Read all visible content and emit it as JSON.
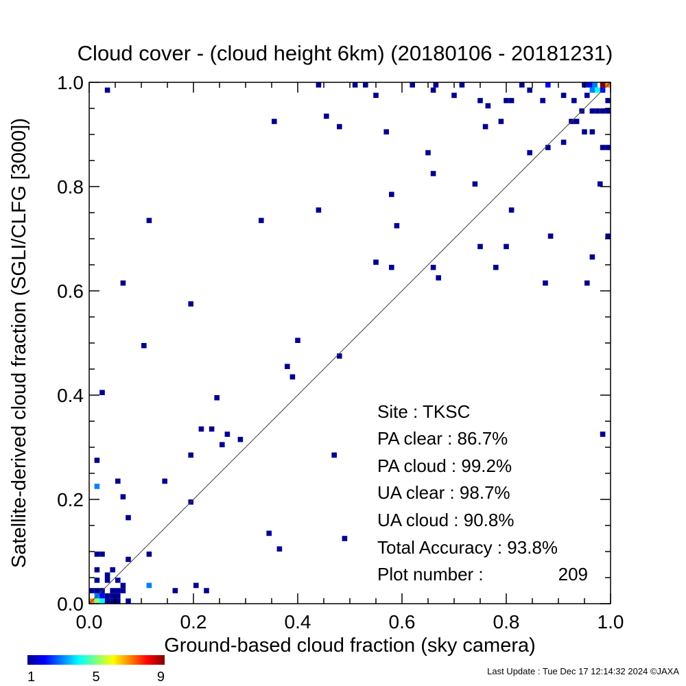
{
  "chart_data": {
    "type": "heatmap",
    "title": "Cloud cover - (cloud height 6km)  (20180106 - 20181231)",
    "xlabel": "Ground-based cloud fraction (sky camera)",
    "ylabel": "Satellite-derived cloud fraction (SGLI/CLFG [3000])",
    "xlim": [
      0.0,
      1.0
    ],
    "ylim": [
      0.0,
      1.0
    ],
    "x_ticks": [
      "0.0",
      "0.2",
      "0.4",
      "0.6",
      "0.8",
      "1.0"
    ],
    "y_ticks": [
      "0.0",
      "0.2",
      "0.4",
      "0.6",
      "0.8",
      "1.0"
    ],
    "reference_line": "y = x",
    "grid": false,
    "colorbar": {
      "min": 1,
      "max": 9,
      "ticks": [
        "1",
        "5",
        "9"
      ],
      "colormap": "rainbow"
    },
    "stats": {
      "site": "Site : TKSC",
      "pa_clear": "PA clear :  86.7%",
      "pa_cloud": "PA cloud :  99.2%",
      "ua_clear": "UA clear :  98.7%",
      "ua_cloud": "UA cloud :  90.8%",
      "total": "Total Accuracy :  93.8%",
      "plot_number_label": "Plot number :",
      "plot_number": "209"
    },
    "points": [
      [
        0.035,
        0.985,
        1
      ],
      [
        0.44,
        0.995,
        1
      ],
      [
        0.51,
        0.995,
        1
      ],
      [
        0.53,
        0.995,
        1
      ],
      [
        0.62,
        0.995,
        1
      ],
      [
        0.665,
        0.995,
        1
      ],
      [
        0.715,
        0.995,
        1
      ],
      [
        0.83,
        0.995,
        1
      ],
      [
        0.88,
        0.995,
        2
      ],
      [
        0.985,
        0.995,
        9
      ],
      [
        0.995,
        0.995,
        7
      ],
      [
        0.97,
        0.995,
        3
      ],
      [
        0.96,
        0.995,
        2
      ],
      [
        0.95,
        0.995,
        1
      ],
      [
        0.975,
        0.985,
        4
      ],
      [
        0.965,
        0.985,
        3
      ],
      [
        0.985,
        0.985,
        2
      ],
      [
        0.455,
        0.935,
        1
      ],
      [
        0.355,
        0.925,
        1
      ],
      [
        0.48,
        0.915,
        1
      ],
      [
        0.55,
        0.975,
        1
      ],
      [
        0.57,
        0.905,
        1
      ],
      [
        0.66,
        0.985,
        1
      ],
      [
        0.7,
        0.975,
        1
      ],
      [
        0.75,
        0.965,
        1
      ],
      [
        0.765,
        0.955,
        1
      ],
      [
        0.76,
        0.915,
        1
      ],
      [
        0.79,
        0.925,
        1
      ],
      [
        0.8,
        0.965,
        1
      ],
      [
        0.81,
        0.965,
        1
      ],
      [
        0.845,
        0.985,
        1
      ],
      [
        0.87,
        0.965,
        1
      ],
      [
        0.91,
        0.975,
        1
      ],
      [
        0.93,
        0.965,
        1
      ],
      [
        0.955,
        0.975,
        1
      ],
      [
        0.965,
        0.945,
        1
      ],
      [
        0.975,
        0.945,
        1
      ],
      [
        0.985,
        0.945,
        1
      ],
      [
        0.995,
        0.945,
        1
      ],
      [
        0.995,
        0.965,
        1
      ],
      [
        0.945,
        0.945,
        1
      ],
      [
        0.925,
        0.925,
        1
      ],
      [
        0.935,
        0.925,
        1
      ],
      [
        0.95,
        0.905,
        1
      ],
      [
        0.965,
        0.905,
        1
      ],
      [
        0.91,
        0.885,
        1
      ],
      [
        0.88,
        0.875,
        1
      ],
      [
        0.845,
        0.865,
        1
      ],
      [
        0.985,
        0.875,
        1
      ],
      [
        0.995,
        0.875,
        1
      ],
      [
        0.65,
        0.865,
        1
      ],
      [
        0.66,
        0.825,
        1
      ],
      [
        0.74,
        0.805,
        1
      ],
      [
        0.58,
        0.785,
        1
      ],
      [
        0.98,
        0.805,
        1
      ],
      [
        0.44,
        0.755,
        1
      ],
      [
        0.81,
        0.755,
        1
      ],
      [
        0.115,
        0.735,
        1
      ],
      [
        0.33,
        0.735,
        1
      ],
      [
        0.59,
        0.725,
        1
      ],
      [
        0.885,
        0.705,
        1
      ],
      [
        0.995,
        0.705,
        1
      ],
      [
        0.75,
        0.685,
        1
      ],
      [
        0.8,
        0.685,
        1
      ],
      [
        0.55,
        0.655,
        1
      ],
      [
        0.58,
        0.645,
        1
      ],
      [
        0.66,
        0.645,
        1
      ],
      [
        0.78,
        0.645,
        1
      ],
      [
        0.965,
        0.665,
        1
      ],
      [
        0.67,
        0.625,
        1
      ],
      [
        0.875,
        0.615,
        1
      ],
      [
        0.955,
        0.615,
        1
      ],
      [
        0.065,
        0.615,
        1
      ],
      [
        0.195,
        0.575,
        1
      ],
      [
        0.105,
        0.495,
        1
      ],
      [
        0.4,
        0.505,
        1
      ],
      [
        0.48,
        0.475,
        1
      ],
      [
        0.38,
        0.455,
        1
      ],
      [
        0.39,
        0.435,
        1
      ],
      [
        0.025,
        0.405,
        1
      ],
      [
        0.245,
        0.395,
        1
      ],
      [
        0.215,
        0.335,
        1
      ],
      [
        0.235,
        0.335,
        1
      ],
      [
        0.265,
        0.325,
        1
      ],
      [
        0.29,
        0.315,
        1
      ],
      [
        0.255,
        0.305,
        1
      ],
      [
        0.985,
        0.325,
        1
      ],
      [
        0.195,
        0.285,
        1
      ],
      [
        0.47,
        0.285,
        1
      ],
      [
        0.015,
        0.275,
        1
      ],
      [
        0.055,
        0.235,
        1
      ],
      [
        0.145,
        0.235,
        1
      ],
      [
        0.015,
        0.225,
        3
      ],
      [
        0.065,
        0.205,
        1
      ],
      [
        0.195,
        0.195,
        1
      ],
      [
        0.075,
        0.165,
        1
      ],
      [
        0.345,
        0.135,
        1
      ],
      [
        0.49,
        0.125,
        1
      ],
      [
        0.365,
        0.105,
        1
      ],
      [
        0.115,
        0.095,
        1
      ],
      [
        0.075,
        0.085,
        1
      ],
      [
        0.015,
        0.095,
        1
      ],
      [
        0.025,
        0.095,
        1
      ],
      [
        0.045,
        0.065,
        1
      ],
      [
        0.015,
        0.065,
        1
      ],
      [
        0.035,
        0.055,
        1
      ],
      [
        0.015,
        0.045,
        1
      ],
      [
        0.035,
        0.045,
        1
      ],
      [
        0.055,
        0.045,
        1
      ],
      [
        0.065,
        0.035,
        1
      ],
      [
        0.115,
        0.035,
        3
      ],
      [
        0.205,
        0.035,
        1
      ],
      [
        0.225,
        0.025,
        1
      ],
      [
        0.165,
        0.025,
        1
      ],
      [
        0.005,
        0.025,
        1
      ],
      [
        0.015,
        0.025,
        1
      ],
      [
        0.025,
        0.025,
        1
      ],
      [
        0.045,
        0.025,
        1
      ],
      [
        0.055,
        0.025,
        1
      ],
      [
        0.065,
        0.025,
        1
      ],
      [
        0.015,
        0.015,
        3
      ],
      [
        0.025,
        0.015,
        2
      ],
      [
        0.035,
        0.015,
        1
      ],
      [
        0.045,
        0.015,
        1
      ],
      [
        0.055,
        0.015,
        1
      ],
      [
        0.015,
        0.005,
        5
      ],
      [
        0.025,
        0.005,
        4
      ],
      [
        0.005,
        0.005,
        7
      ],
      [
        0.035,
        0.005,
        1
      ],
      [
        0.045,
        0.005,
        1
      ],
      [
        0.055,
        0.005,
        1
      ],
      [
        0.075,
        0.005,
        1
      ]
    ]
  },
  "footer": {
    "last_update": "Last Update : Tue Dec 17 12:14:32 2024  ©JAXA"
  }
}
